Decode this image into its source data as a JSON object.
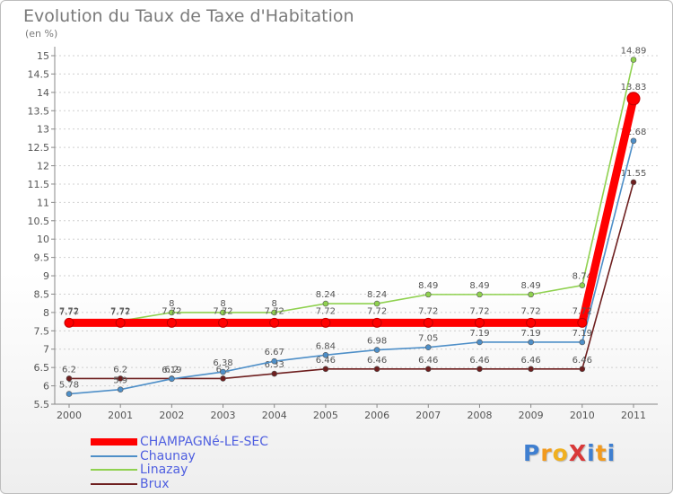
{
  "chart_data": {
    "type": "line",
    "title": "Evolution du Taux de Taxe d'Habitation",
    "ylabel": "(en %)",
    "xlabel": "",
    "x": [
      "2000",
      "2001",
      "2002",
      "2003",
      "2004",
      "2005",
      "2006",
      "2007",
      "2008",
      "2009",
      "2010",
      "2011"
    ],
    "ylim": [
      5.5,
      15
    ],
    "ytick_step": 0.5,
    "yticks": [
      "5.5",
      "6",
      "6.5",
      "7",
      "7.5",
      "8",
      "8.5",
      "9",
      "9.5",
      "10",
      "10.5",
      "11",
      "11.5",
      "12",
      "12.5",
      "13",
      "13.5",
      "14",
      "14.5",
      "15"
    ],
    "grid": "horizontal dashed",
    "legend_position": "bottom-left",
    "series": [
      {
        "name": "Brux",
        "color": "#6e1f1f",
        "values": [
          6.2,
          6.2,
          6.2,
          6.2,
          6.33,
          6.46,
          6.46,
          6.46,
          6.46,
          6.46,
          6.46,
          11.55
        ],
        "labels": [
          "6.2",
          "6.2",
          "6.2",
          "6.2",
          "6.33",
          "6.46",
          "6.46",
          "6.46",
          "6.46",
          "6.46",
          "6.46",
          "11.55"
        ]
      },
      {
        "name": "Linazay",
        "color": "#8fd14f",
        "values": [
          7.77,
          7.77,
          8,
          8,
          8,
          8.24,
          8.24,
          8.49,
          8.49,
          8.49,
          8.74,
          14.89
        ],
        "labels": [
          "7.77",
          "7.77",
          "8",
          "8",
          "8",
          "8.24",
          "8.24",
          "8.49",
          "8.49",
          "8.49",
          "8.74",
          "14.89"
        ]
      },
      {
        "name": "Chaunay",
        "color": "#4e8fc8",
        "values": [
          5.78,
          5.9,
          6.19,
          6.38,
          6.67,
          6.84,
          6.98,
          7.05,
          7.19,
          7.19,
          7.19,
          12.68
        ],
        "labels": [
          "5.78",
          "5.9",
          "6.19",
          "6.38",
          "6.67",
          "6.84",
          "6.98",
          "7.05",
          "7.19",
          "7.19",
          "7.19",
          "12.68"
        ]
      },
      {
        "name": "CHAMPAGNé-LE-SEC",
        "color": "#ff0000",
        "values": [
          7.72,
          7.72,
          7.72,
          7.72,
          7.72,
          7.72,
          7.72,
          7.72,
          7.72,
          7.72,
          7.72,
          13.83
        ],
        "labels": [
          "7.72",
          "7.72",
          "7.72",
          "7.72",
          "7.72",
          "7.72",
          "7.72",
          "7.72",
          "7.72",
          "7.72",
          "7.72",
          "13.83"
        ]
      }
    ],
    "legend_order": [
      "CHAMPAGNé-LE-SEC",
      "Chaunay",
      "Linazay",
      "Brux"
    ]
  },
  "logo": {
    "text": "ProXiti",
    "colors": [
      "#3f7fd0",
      "#f29a1e",
      "#f0b020",
      "#d93838",
      "#3f7fd0",
      "#f29a1e",
      "#3f7fd0"
    ]
  }
}
